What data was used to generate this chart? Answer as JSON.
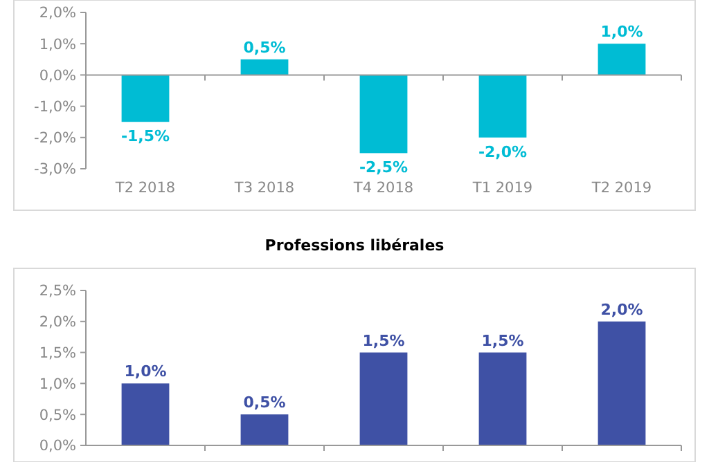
{
  "chart_data": [
    {
      "type": "bar",
      "categories": [
        "T2 2018",
        "T3 2018",
        "T4 2018",
        "T1 2019",
        "T2 2019"
      ],
      "values": [
        -1.5,
        0.5,
        -2.5,
        -2.0,
        1.0
      ],
      "color": "#00bcd4",
      "value_labels": [
        "-1,5%",
        "0,5%",
        "-2,5%",
        "-2,0%",
        "1,0%"
      ],
      "ylim": [
        -3,
        2
      ],
      "yticks": [
        {
          "value": -3,
          "label": "-3,0%"
        },
        {
          "value": -2,
          "label": "-2,0%"
        },
        {
          "value": -1,
          "label": "-1,0%"
        },
        {
          "value": 0,
          "label": "0,0%"
        },
        {
          "value": 1,
          "label": "1,0%"
        },
        {
          "value": 2,
          "label": "2,0%"
        }
      ]
    },
    {
      "type": "bar",
      "title": "Professions libérales",
      "categories": [
        null,
        null,
        null,
        null,
        null
      ],
      "values": [
        1.0,
        0.5,
        1.5,
        1.5,
        2.0
      ],
      "color": "#3f51a5",
      "value_labels": [
        "1,0%",
        "0,5%",
        "1,5%",
        "1,5%",
        "2,0%"
      ],
      "ylim": [
        0,
        2.5
      ],
      "yticks": [
        {
          "value": 0,
          "label": "0,0%"
        },
        {
          "value": 0.5,
          "label": "0,5%"
        },
        {
          "value": 1,
          "label": "1,0%"
        },
        {
          "value": 1.5,
          "label": "1,5%"
        },
        {
          "value": 2,
          "label": "2,0%"
        },
        {
          "value": 2.5,
          "label": "2,5%"
        }
      ]
    }
  ]
}
